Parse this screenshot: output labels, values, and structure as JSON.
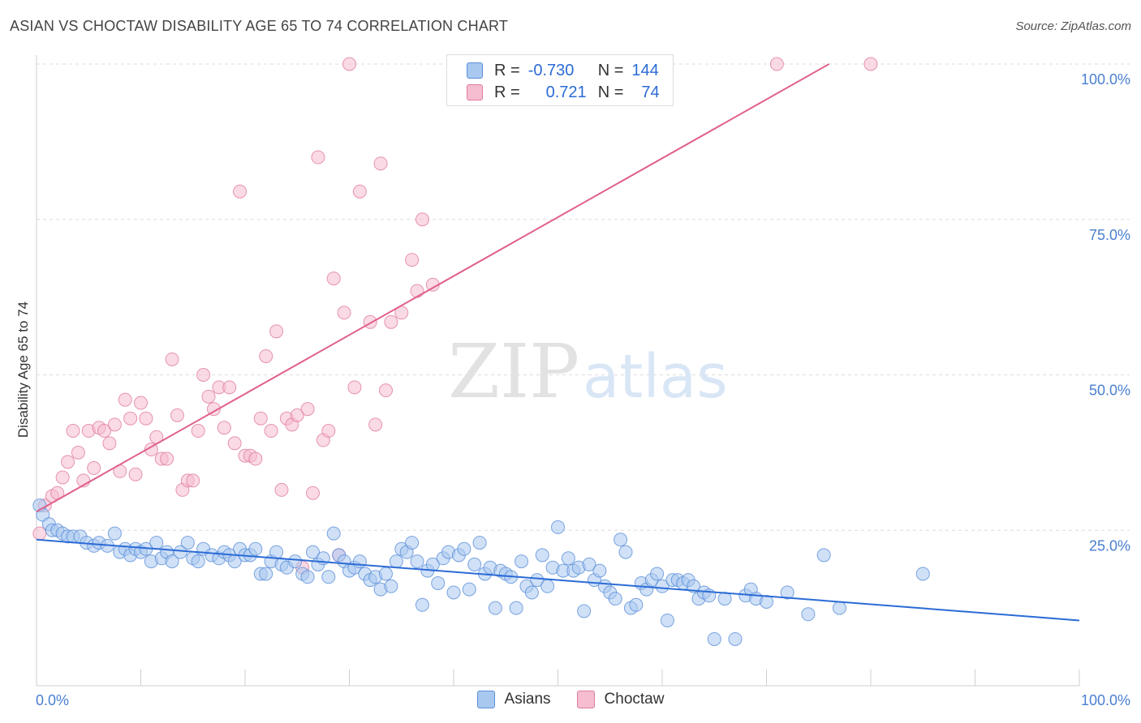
{
  "header": {
    "title": "ASIAN VS CHOCTAW DISABILITY AGE 65 TO 74 CORRELATION CHART",
    "source": "Source: ZipAtlas.com"
  },
  "watermark": {
    "zip": "ZIP",
    "atlas": "atlas"
  },
  "legend_top": {
    "rows": [
      {
        "r_label": "R =",
        "r_value": "-0.730",
        "n_label": "N =",
        "n_value": "144"
      },
      {
        "r_label": "R =",
        "r_value": "0.721",
        "n_label": "N =",
        "n_value": "74"
      }
    ]
  },
  "chart_data": {
    "type": "scatter",
    "title": "ASIAN VS CHOCTAW DISABILITY AGE 65 TO 74 CORRELATION CHART",
    "xlabel": "",
    "ylabel": "Disability Age 65 to 74",
    "xlim": [
      0,
      100
    ],
    "ylim": [
      0,
      100
    ],
    "x_tick_labels": [
      "0.0%",
      "100.0%"
    ],
    "y_ticks": [
      25,
      50,
      75,
      100
    ],
    "y_tick_labels": [
      "25.0%",
      "50.0%",
      "75.0%",
      "100.0%"
    ],
    "grid": "horizontal dashed",
    "legend_position": "top-center and bottom",
    "colors": {
      "asians_fill": "#a9c8f0",
      "asians_stroke": "#5b8fd8",
      "asians_line": "#2b6bd6",
      "choctaw_fill": "#f6bcd0",
      "choctaw_stroke": "#e07ca0",
      "choctaw_line": "#e0608d"
    },
    "series": [
      {
        "name": "Asians",
        "r": -0.73,
        "n": 144,
        "trend": {
          "x": [
            0,
            100
          ],
          "y": [
            23.5,
            10.5
          ]
        },
        "points": [
          [
            0.3,
            29
          ],
          [
            0.6,
            27.5
          ],
          [
            1.2,
            26
          ],
          [
            1.5,
            25
          ],
          [
            2,
            25
          ],
          [
            2.5,
            24.5
          ],
          [
            3,
            24
          ],
          [
            3.5,
            24
          ],
          [
            4.2,
            24
          ],
          [
            4.8,
            23
          ],
          [
            5.5,
            22.5
          ],
          [
            6,
            23
          ],
          [
            6.8,
            22.5
          ],
          [
            7.5,
            24.5
          ],
          [
            8,
            21.5
          ],
          [
            8.5,
            22
          ],
          [
            9,
            21
          ],
          [
            9.5,
            22
          ],
          [
            10,
            21.5
          ],
          [
            10.5,
            22
          ],
          [
            11,
            20
          ],
          [
            11.5,
            23
          ],
          [
            12,
            20.5
          ],
          [
            12.5,
            21.5
          ],
          [
            13,
            20
          ],
          [
            13.8,
            21.5
          ],
          [
            14.5,
            23
          ],
          [
            15,
            20.5
          ],
          [
            15.5,
            20
          ],
          [
            16,
            22
          ],
          [
            16.8,
            21
          ],
          [
            17.5,
            20.5
          ],
          [
            18,
            21.5
          ],
          [
            18.5,
            21
          ],
          [
            19,
            20
          ],
          [
            19.5,
            22
          ],
          [
            20,
            21
          ],
          [
            20.5,
            21
          ],
          [
            21,
            22
          ],
          [
            21.5,
            18
          ],
          [
            22,
            18
          ],
          [
            22.5,
            20
          ],
          [
            23,
            21.5
          ],
          [
            23.5,
            19.5
          ],
          [
            24,
            19
          ],
          [
            24.8,
            20
          ],
          [
            25.5,
            18
          ],
          [
            26,
            17.5
          ],
          [
            26.5,
            21.5
          ],
          [
            27,
            19.5
          ],
          [
            27.5,
            20.5
          ],
          [
            28,
            17.5
          ],
          [
            28.5,
            24.5
          ],
          [
            29,
            21
          ],
          [
            29.5,
            20
          ],
          [
            30,
            18.5
          ],
          [
            30.5,
            19
          ],
          [
            31,
            20
          ],
          [
            31.5,
            18
          ],
          [
            32,
            17
          ],
          [
            32.5,
            17.5
          ],
          [
            33,
            15.5
          ],
          [
            33.5,
            18
          ],
          [
            34,
            16
          ],
          [
            34.5,
            20
          ],
          [
            35,
            22
          ],
          [
            35.5,
            21.5
          ],
          [
            36,
            23
          ],
          [
            36.5,
            20
          ],
          [
            37,
            13
          ],
          [
            37.5,
            18.5
          ],
          [
            38,
            19.5
          ],
          [
            38.5,
            16.5
          ],
          [
            39,
            20.5
          ],
          [
            39.5,
            21.5
          ],
          [
            40,
            15
          ],
          [
            40.5,
            21
          ],
          [
            41,
            22
          ],
          [
            41.5,
            15.5
          ],
          [
            42,
            19.5
          ],
          [
            42.5,
            23
          ],
          [
            43,
            18
          ],
          [
            43.5,
            19
          ],
          [
            44,
            12.5
          ],
          [
            44.5,
            18.5
          ],
          [
            45,
            18
          ],
          [
            45.5,
            17.5
          ],
          [
            46,
            12.5
          ],
          [
            46.5,
            20
          ],
          [
            47,
            16
          ],
          [
            47.5,
            15
          ],
          [
            48,
            17
          ],
          [
            48.5,
            21
          ],
          [
            49,
            16
          ],
          [
            49.5,
            19
          ],
          [
            50,
            25.5
          ],
          [
            50.5,
            18.5
          ],
          [
            51,
            20.5
          ],
          [
            51.5,
            18.5
          ],
          [
            52,
            19
          ],
          [
            52.5,
            12
          ],
          [
            53,
            19.5
          ],
          [
            53.5,
            17
          ],
          [
            54,
            18.5
          ],
          [
            54.5,
            16
          ],
          [
            55,
            15
          ],
          [
            55.5,
            14
          ],
          [
            56,
            23.5
          ],
          [
            56.5,
            21.5
          ],
          [
            57,
            12.5
          ],
          [
            57.5,
            13
          ],
          [
            58,
            16.5
          ],
          [
            58.5,
            15.5
          ],
          [
            59,
            17
          ],
          [
            59.5,
            18
          ],
          [
            60,
            16
          ],
          [
            60.5,
            10.5
          ],
          [
            61,
            17
          ],
          [
            61.5,
            17
          ],
          [
            62,
            16.5
          ],
          [
            62.5,
            17
          ],
          [
            63,
            16
          ],
          [
            63.5,
            14
          ],
          [
            64,
            15
          ],
          [
            64.5,
            14.5
          ],
          [
            65,
            7.5
          ],
          [
            66,
            14
          ],
          [
            67,
            7.5
          ],
          [
            68,
            14.5
          ],
          [
            68.5,
            15.5
          ],
          [
            69,
            14
          ],
          [
            70,
            13.5
          ],
          [
            72,
            15
          ],
          [
            74,
            11.5
          ],
          [
            75.5,
            21
          ],
          [
            77,
            12.5
          ],
          [
            85,
            18
          ]
        ]
      },
      {
        "name": "Choctaw",
        "r": 0.721,
        "n": 74,
        "trend": {
          "x": [
            0,
            76
          ],
          "y": [
            28,
            100
          ]
        },
        "points": [
          [
            0.3,
            24.5
          ],
          [
            0.8,
            29
          ],
          [
            1.5,
            30.5
          ],
          [
            2,
            31
          ],
          [
            2.5,
            33.5
          ],
          [
            3,
            36
          ],
          [
            3.5,
            41
          ],
          [
            4,
            37.5
          ],
          [
            4.5,
            33
          ],
          [
            5,
            41
          ],
          [
            5.5,
            35
          ],
          [
            6,
            41.5
          ],
          [
            6.5,
            41
          ],
          [
            7,
            39
          ],
          [
            7.5,
            42
          ],
          [
            8,
            34.5
          ],
          [
            8.5,
            46
          ],
          [
            9,
            43
          ],
          [
            9.5,
            34
          ],
          [
            10,
            45.5
          ],
          [
            10.5,
            43
          ],
          [
            11,
            38
          ],
          [
            11.5,
            40
          ],
          [
            12,
            36.5
          ],
          [
            12.5,
            36.5
          ],
          [
            13,
            52.5
          ],
          [
            13.5,
            43.5
          ],
          [
            14,
            31.5
          ],
          [
            14.5,
            33
          ],
          [
            15,
            33
          ],
          [
            15.5,
            41
          ],
          [
            16,
            50
          ],
          [
            16.5,
            46.5
          ],
          [
            17,
            44.5
          ],
          [
            17.5,
            48
          ],
          [
            18,
            41.5
          ],
          [
            18.5,
            48
          ],
          [
            19,
            39
          ],
          [
            19.5,
            79.5
          ],
          [
            20,
            37
          ],
          [
            20.5,
            37
          ],
          [
            21,
            36.5
          ],
          [
            21.5,
            43
          ],
          [
            22,
            53
          ],
          [
            22.5,
            41
          ],
          [
            23,
            57
          ],
          [
            23.5,
            31.5
          ],
          [
            24,
            43
          ],
          [
            24.5,
            42
          ],
          [
            25,
            43.5
          ],
          [
            25.5,
            19
          ],
          [
            26,
            44.5
          ],
          [
            26.5,
            31
          ],
          [
            27,
            85
          ],
          [
            27.5,
            39.5
          ],
          [
            28,
            41
          ],
          [
            28.5,
            65.5
          ],
          [
            29,
            21
          ],
          [
            29.5,
            60
          ],
          [
            30,
            100
          ],
          [
            30.5,
            48
          ],
          [
            31,
            79.5
          ],
          [
            32,
            58.5
          ],
          [
            32.5,
            42
          ],
          [
            33,
            84
          ],
          [
            33.5,
            47.5
          ],
          [
            34,
            58.5
          ],
          [
            35,
            60
          ],
          [
            36,
            68.5
          ],
          [
            36.5,
            63.5
          ],
          [
            37,
            75
          ],
          [
            38,
            64.5
          ],
          [
            71,
            100
          ],
          [
            80,
            100
          ]
        ]
      }
    ]
  },
  "legend_bottom": {
    "items": [
      "Asians",
      "Choctaw"
    ]
  }
}
